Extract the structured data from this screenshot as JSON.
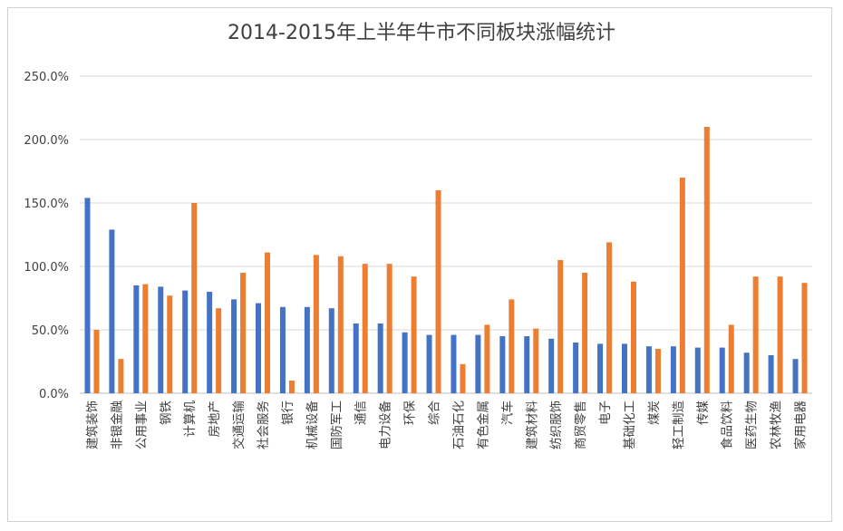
{
  "chart_data": {
    "type": "bar",
    "title": "2014-2015年上半年牛市不同板块涨幅统计",
    "xlabel": "",
    "ylabel": "",
    "ylim": [
      0,
      250
    ],
    "yticks": [
      "0.0%",
      "50.0%",
      "100.0%",
      "150.0%",
      "200.0%",
      "250.0%"
    ],
    "grid": true,
    "legend": "none",
    "categories": [
      "建筑装饰",
      "非银金融",
      "公用事业",
      "钢铁",
      "计算机",
      "房地产",
      "交通运输",
      "社会服务",
      "银行",
      "机械设备",
      "国防军工",
      "通信",
      "电力设备",
      "环保",
      "综合",
      "石油石化",
      "有色金属",
      "汽车",
      "建筑材料",
      "纺织服饰",
      "商贸零售",
      "电子",
      "基础化工",
      "煤炭",
      "轻工制造",
      "传媒",
      "食品饮料",
      "医药生物",
      "农林牧渔",
      "家用电器"
    ],
    "series": [
      {
        "color": "#4472c4",
        "values": [
          154,
          129,
          85,
          84,
          81,
          80,
          74,
          71,
          68,
          68,
          67,
          55,
          55,
          48,
          46,
          46,
          46,
          45,
          45,
          43,
          40,
          39,
          39,
          37,
          37,
          36,
          36,
          32,
          30,
          27
        ]
      },
      {
        "color": "#ed7d31",
        "values": [
          50,
          27,
          86,
          77,
          150,
          67,
          95,
          111,
          10,
          109,
          108,
          102,
          102,
          92,
          160,
          23,
          54,
          74,
          51,
          105,
          95,
          119,
          88,
          35,
          170,
          210,
          54,
          92,
          92,
          87
        ]
      }
    ]
  }
}
